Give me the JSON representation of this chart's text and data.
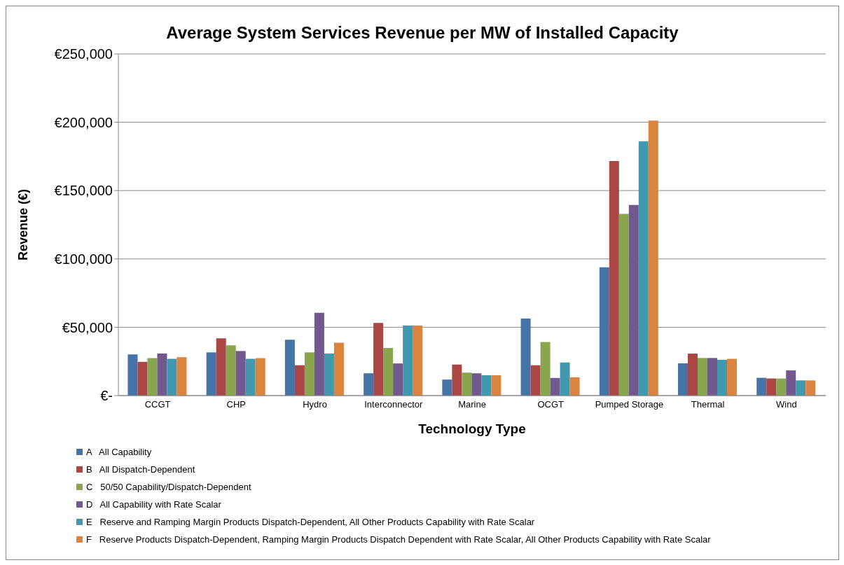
{
  "chart_data": {
    "type": "bar",
    "title": "Average System Services Revenue per MW of Installed Capacity",
    "xlabel": "Technology Type",
    "ylabel": "Revenue (€)",
    "categories": [
      "CCGT",
      "CHP",
      "Hydro",
      "Interconnector",
      "Marine",
      "OCGT",
      "Pumped Storage",
      "Thermal",
      "Wind"
    ],
    "series": [
      {
        "name": "A   All Capability",
        "color": "#4572a7",
        "values": [
          30100,
          31600,
          40900,
          16300,
          11700,
          56400,
          93900,
          23600,
          13000
        ]
      },
      {
        "name": "B   All Dispatch-Dependent",
        "color": "#aa4643",
        "values": [
          24700,
          41900,
          22200,
          53200,
          22700,
          22200,
          171600,
          30700,
          12500
        ]
      },
      {
        "name": "C   50/50 Capability/Dispatch-Dependent",
        "color": "#89a54e",
        "values": [
          27400,
          36700,
          31600,
          34800,
          16800,
          39200,
          133000,
          27500,
          12500
        ]
      },
      {
        "name": "D   All Capability with Rate Scalar",
        "color": "#71588f",
        "values": [
          30800,
          32600,
          60600,
          23500,
          16300,
          12900,
          139500,
          27500,
          18400
        ]
      },
      {
        "name": "E   Reserve and Ramping Margin Products Dispatch-Dependent, All Other Products Capability with Rate Scalar",
        "color": "#4198af",
        "values": [
          26900,
          26900,
          30800,
          51200,
          14900,
          24200,
          186100,
          26200,
          11100
        ]
      },
      {
        "name": "F   Reserve Products Dispatch-Dependent, Ramping Margin Products Dispatch Dependent with Rate Scalar, All Other Products Capability with Rate Scalar",
        "color": "#db843d",
        "values": [
          28100,
          27400,
          38700,
          51200,
          14900,
          13400,
          201200,
          26900,
          11100
        ]
      }
    ],
    "ylim": [
      0,
      250000
    ],
    "yticks": [
      {
        "value": 0,
        "label": "€-"
      },
      {
        "value": 50000,
        "label": "€50,000"
      },
      {
        "value": 100000,
        "label": "€100,000"
      },
      {
        "value": 150000,
        "label": "€150,000"
      },
      {
        "value": 200000,
        "label": "€200,000"
      },
      {
        "value": 250000,
        "label": "€250,000"
      }
    ],
    "grid": "y",
    "legend": "bottom"
  }
}
